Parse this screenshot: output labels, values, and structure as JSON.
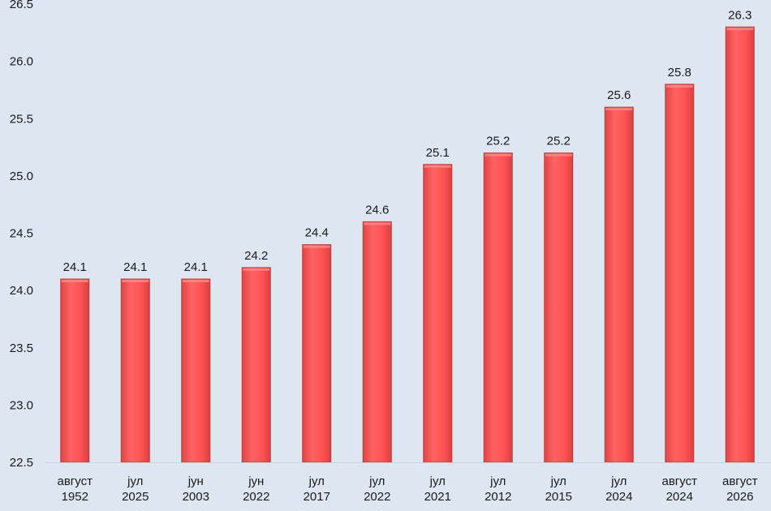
{
  "chart_data": {
    "type": "bar",
    "categories": [
      [
        "август",
        "1952"
      ],
      [
        "јул",
        "2025"
      ],
      [
        "јун",
        "2003"
      ],
      [
        "јун",
        "2022"
      ],
      [
        "јул",
        "2017"
      ],
      [
        "јул",
        "2022"
      ],
      [
        "јул",
        "2021"
      ],
      [
        "јул",
        "2012"
      ],
      [
        "јул",
        "2015"
      ],
      [
        "јул",
        "2024"
      ],
      [
        "август",
        "2024"
      ],
      [
        "август",
        "2026"
      ]
    ],
    "values": [
      24.1,
      24.1,
      24.1,
      24.2,
      24.4,
      24.6,
      25.1,
      25.2,
      25.2,
      25.6,
      25.8,
      26.3
    ],
    "data_labels": [
      "24.1",
      "24.1",
      "24.1",
      "24.2",
      "24.4",
      "24.6",
      "25.1",
      "25.2",
      "25.2",
      "25.6",
      "25.8",
      "26.3"
    ],
    "ylim": [
      22.5,
      26.5
    ],
    "yticks": [
      "22.5",
      "23.0",
      "23.5",
      "24.0",
      "24.5",
      "25.0",
      "25.5",
      "26.0",
      "26.5"
    ],
    "title": "",
    "xlabel": "",
    "ylabel": "",
    "grid": false,
    "colors": {
      "bar": "#ff5454",
      "bar_edge": "#c23a3a",
      "background": "#dde6f1"
    }
  }
}
